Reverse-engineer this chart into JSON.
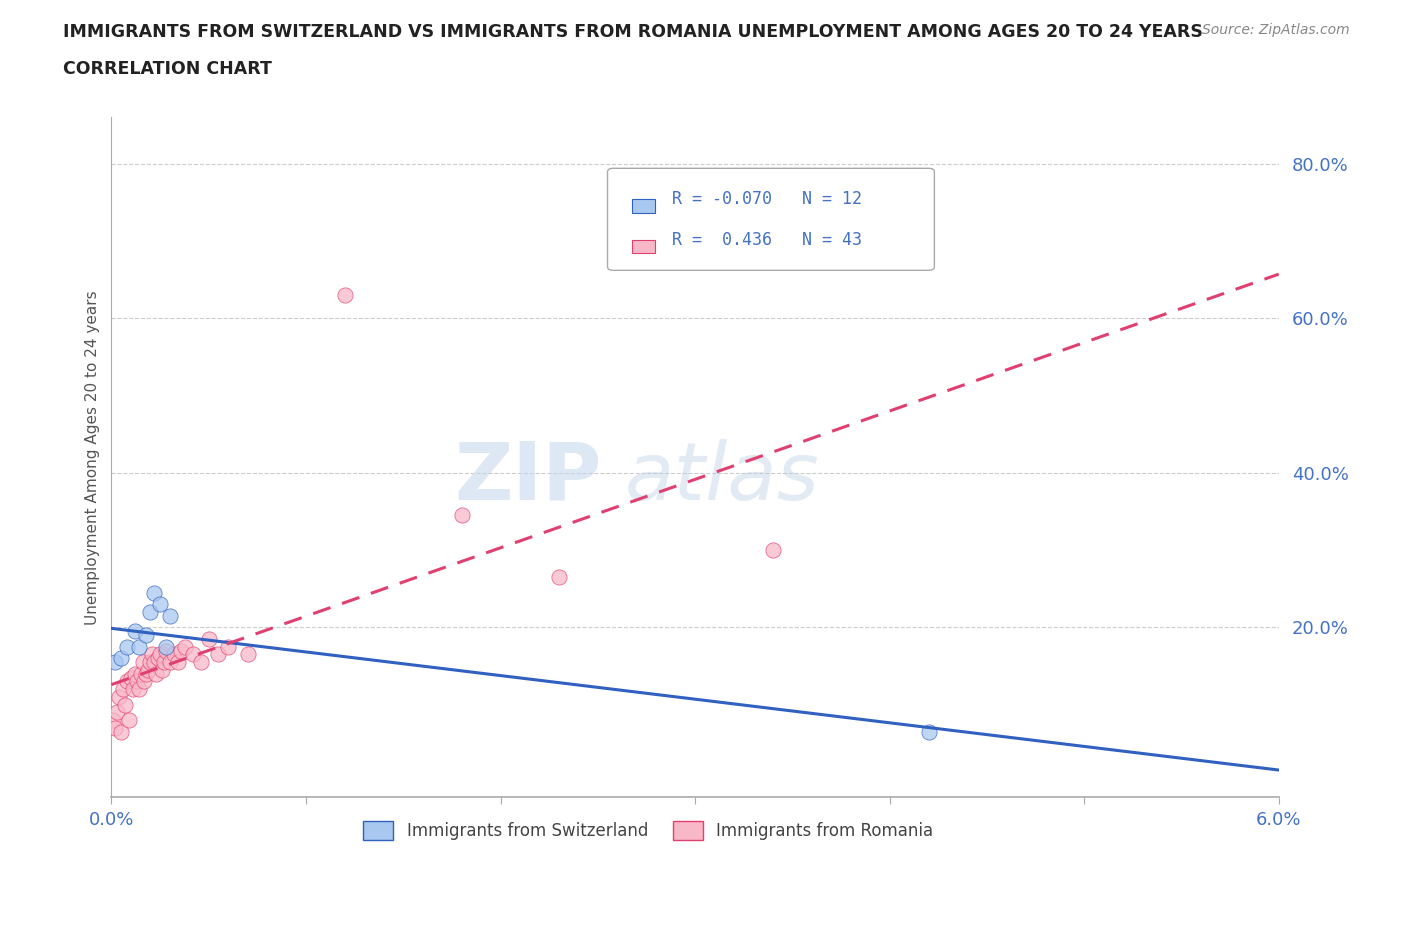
{
  "title_line1": "IMMIGRANTS FROM SWITZERLAND VS IMMIGRANTS FROM ROMANIA UNEMPLOYMENT AMONG AGES 20 TO 24 YEARS",
  "title_line2": "CORRELATION CHART",
  "source_text": "Source: ZipAtlas.com",
  "ylabel": "Unemployment Among Ages 20 to 24 years",
  "xlim": [
    0.0,
    0.06
  ],
  "ylim": [
    -0.02,
    0.86
  ],
  "xticks": [
    0.0,
    0.01,
    0.02,
    0.03,
    0.04,
    0.05,
    0.06
  ],
  "xticklabels": [
    "0.0%",
    "",
    "",
    "",
    "",
    "",
    "6.0%"
  ],
  "ytick_positions": [
    0.2,
    0.4,
    0.6,
    0.8
  ],
  "yticklabels": [
    "20.0%",
    "40.0%",
    "60.0%",
    "80.0%"
  ],
  "grid_color": "#cccccc",
  "background_color": "#ffffff",
  "switzerland_color": "#a8c8f0",
  "romania_color": "#f8b8c8",
  "trend_switzerland_color": "#3060c0",
  "trend_romania_color": "#e04070",
  "legend_R_switzerland": "-0.070",
  "legend_N_switzerland": "12",
  "legend_R_romania": "0.436",
  "legend_N_romania": "43",
  "watermark_zip": "ZIP",
  "watermark_atlas": "atlas",
  "switzerland_x": [
    0.0002,
    0.0005,
    0.0008,
    0.0012,
    0.0014,
    0.0018,
    0.002,
    0.0022,
    0.0025,
    0.0028,
    0.003,
    0.042
  ],
  "switzerland_y": [
    0.155,
    0.16,
    0.175,
    0.195,
    0.175,
    0.19,
    0.22,
    0.245,
    0.23,
    0.175,
    0.215,
    0.065
  ],
  "romania_x": [
    0.0001,
    0.0002,
    0.0003,
    0.0004,
    0.0005,
    0.0006,
    0.0007,
    0.0008,
    0.0009,
    0.001,
    0.0011,
    0.0012,
    0.0013,
    0.0014,
    0.0015,
    0.0016,
    0.0017,
    0.0018,
    0.0019,
    0.002,
    0.0021,
    0.0022,
    0.0023,
    0.0024,
    0.0025,
    0.0026,
    0.0027,
    0.0028,
    0.003,
    0.0032,
    0.0034,
    0.0036,
    0.0038,
    0.0042,
    0.0046,
    0.005,
    0.0055,
    0.006,
    0.007,
    0.012,
    0.018,
    0.023,
    0.034
  ],
  "romania_y": [
    0.08,
    0.07,
    0.09,
    0.11,
    0.065,
    0.12,
    0.1,
    0.13,
    0.08,
    0.135,
    0.12,
    0.14,
    0.13,
    0.12,
    0.14,
    0.155,
    0.13,
    0.14,
    0.145,
    0.155,
    0.165,
    0.155,
    0.14,
    0.16,
    0.165,
    0.145,
    0.155,
    0.17,
    0.155,
    0.165,
    0.155,
    0.17,
    0.175,
    0.165,
    0.155,
    0.185,
    0.165,
    0.175,
    0.165,
    0.63,
    0.345,
    0.265,
    0.3
  ],
  "marker_size": 120,
  "marker_alpha": 0.75
}
